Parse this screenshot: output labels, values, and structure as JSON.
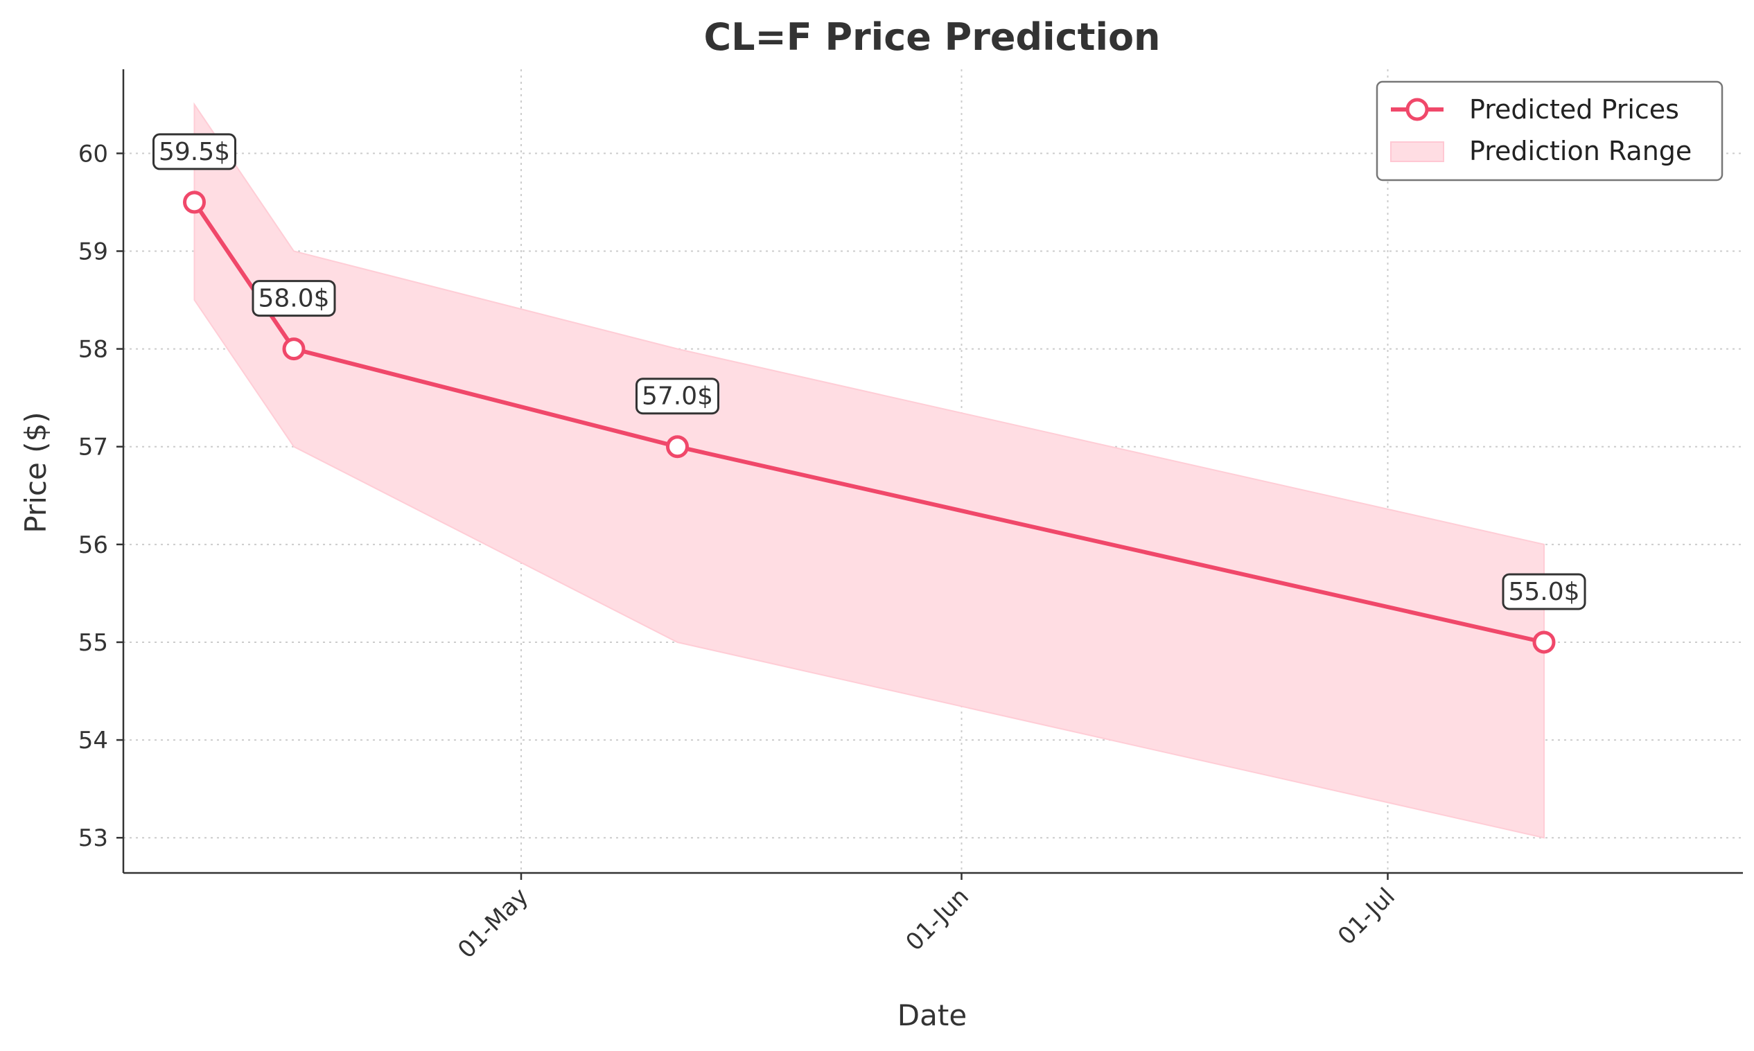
{
  "chart_data": {
    "type": "line",
    "title": "CL=F Price Prediction",
    "xlabel": "Date",
    "ylabel": "Price ($)",
    "x_ticks": [
      {
        "date": "2025-05-01",
        "label": "01-May"
      },
      {
        "date": "2025-06-01",
        "label": "01-Jun"
      },
      {
        "date": "2025-07-01",
        "label": "01-Jul"
      }
    ],
    "xlim": [
      "2025-04-03",
      "2025-07-26"
    ],
    "yticks": [
      53,
      54,
      55,
      56,
      57,
      58,
      59,
      60
    ],
    "ylim": [
      52.64,
      60.86
    ],
    "grid": true,
    "legend_position": "top-right",
    "series": [
      {
        "name": "Predicted Prices",
        "color": "#f0486a",
        "x": [
          "2025-04-08",
          "2025-04-15",
          "2025-05-12",
          "2025-07-12"
        ],
        "values": [
          59.5,
          58.0,
          57.0,
          55.0
        ],
        "labels": [
          "59.5$",
          "58.0$",
          "57.0$",
          "55.0$"
        ]
      }
    ],
    "range": {
      "name": "Prediction Range",
      "color": "#ffdde3",
      "x": [
        "2025-04-08",
        "2025-04-15",
        "2025-05-12",
        "2025-07-12"
      ],
      "lower": [
        58.5,
        57.0,
        55.0,
        53.0
      ],
      "upper": [
        60.5,
        59.0,
        58.0,
        56.0
      ]
    }
  }
}
